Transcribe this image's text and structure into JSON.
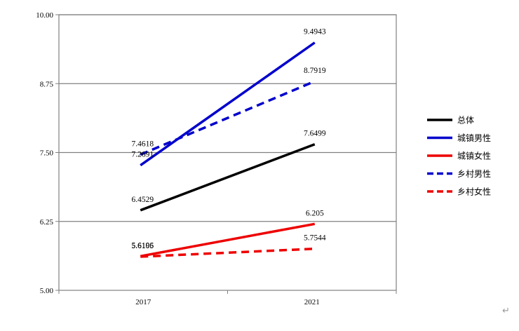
{
  "chart_data": {
    "type": "line",
    "title": "",
    "xlabel": "",
    "ylabel": "",
    "categories": [
      "2017",
      "2021"
    ],
    "ylim": [
      5.0,
      10.0
    ],
    "yticks": [
      "5.00",
      "6.25",
      "7.50",
      "8.75",
      "10.00"
    ],
    "grid": "horizontal",
    "legend": "right",
    "series": [
      {
        "name": "总体",
        "values": [
          6.4529,
          7.6499
        ],
        "labels": [
          "6.4529",
          "7.6499"
        ],
        "color": "#000000",
        "dash": "solid"
      },
      {
        "name": "城镇男性",
        "values": [
          7.2691,
          9.4943
        ],
        "labels": [
          "7.2691",
          "9.4943"
        ],
        "color": "#0000cc",
        "dash": "solid"
      },
      {
        "name": "城镇女性",
        "values": [
          5.6196,
          6.205
        ],
        "labels": [
          "5.6196",
          "6.205"
        ],
        "color": "#ee0000",
        "dash": "solid"
      },
      {
        "name": "乡村男性",
        "values": [
          7.4618,
          8.7919
        ],
        "labels": [
          "7.4618",
          "8.7919"
        ],
        "color": "#0000cc",
        "dash": "dashed"
      },
      {
        "name": "乡村女性",
        "values": [
          5.6105,
          5.7544
        ],
        "labels": [
          "5.6105",
          "5.7544"
        ],
        "color": "#ee0000",
        "dash": "dashed"
      }
    ]
  },
  "page": {
    "return_mark": "↵"
  }
}
